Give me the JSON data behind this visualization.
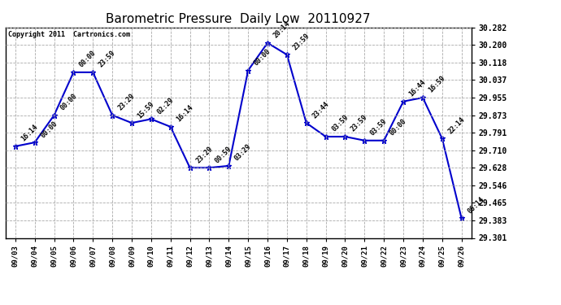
{
  "title": "Barometric Pressure  Daily Low  20110927",
  "copyright": "Copyright 2011  Cartronics.com",
  "x_labels": [
    "09/03",
    "09/04",
    "09/05",
    "09/06",
    "09/07",
    "09/08",
    "09/09",
    "09/10",
    "09/11",
    "09/12",
    "09/13",
    "09/14",
    "09/15",
    "09/16",
    "09/17",
    "09/18",
    "09/19",
    "09/20",
    "09/21",
    "09/22",
    "09/23",
    "09/24",
    "09/25",
    "09/26"
  ],
  "y_values": [
    29.728,
    29.746,
    29.873,
    30.073,
    30.073,
    29.873,
    29.837,
    29.855,
    29.819,
    29.628,
    29.628,
    29.637,
    30.082,
    30.21,
    30.155,
    29.837,
    29.773,
    29.773,
    29.755,
    29.755,
    29.937,
    29.955,
    29.764,
    29.392
  ],
  "point_labels": [
    "16:14",
    "00:00",
    "00:00",
    "00:00",
    "23:59",
    "23:29",
    "15:59",
    "02:29",
    "16:14",
    "23:29",
    "00:59",
    "03:29",
    "00:00",
    "20:14",
    "23:59",
    "23:44",
    "03:59",
    "23:59",
    "03:59",
    "00:00",
    "16:44",
    "16:59",
    "22:14",
    "06:14"
  ],
  "y_min": 29.301,
  "y_max": 30.282,
  "y_ticks": [
    29.301,
    29.383,
    29.465,
    29.546,
    29.628,
    29.71,
    29.791,
    29.873,
    29.955,
    30.037,
    30.118,
    30.2,
    30.282
  ],
  "line_color": "#0000CC",
  "marker_color": "#0000CC",
  "bg_color": "#FFFFFF",
  "grid_color": "#AAAAAA",
  "title_fontsize": 11,
  "point_label_fontsize": 6
}
